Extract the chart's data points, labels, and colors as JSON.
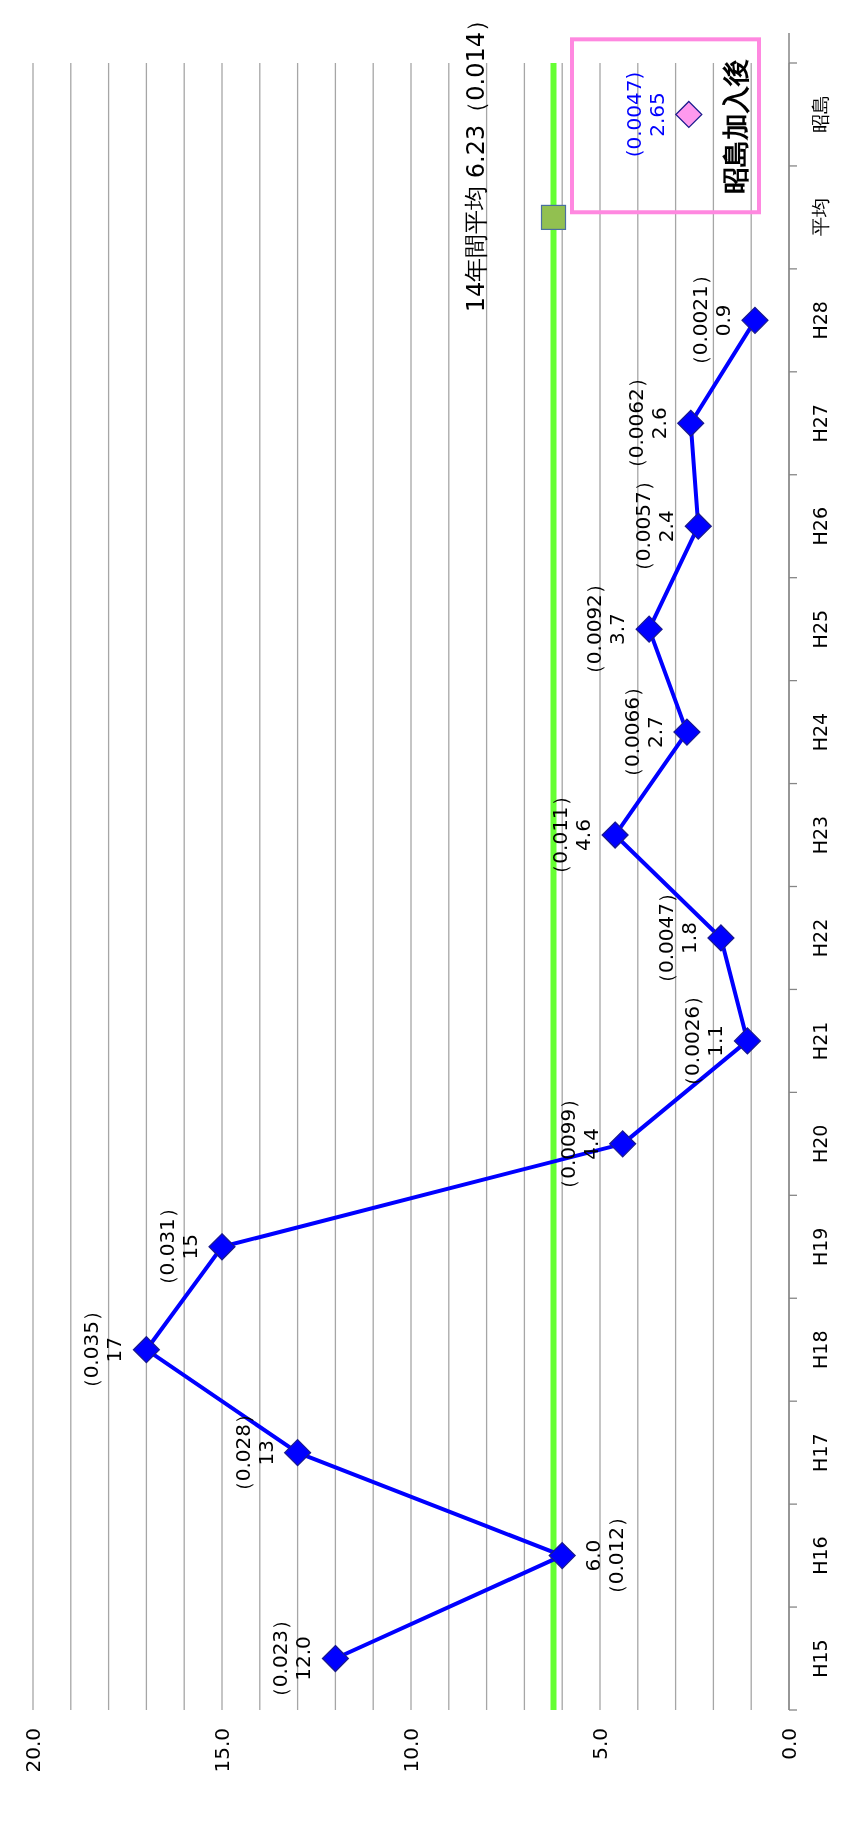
{
  "chart_data": {
    "type": "line",
    "orientation": "horizontal",
    "categories": [
      "昭島",
      "平均",
      "H28",
      "H27",
      "H26",
      "H25",
      "H24",
      "H23",
      "H22",
      "H21",
      "H20",
      "H19",
      "H18",
      "H17",
      "H16",
      "H15"
    ],
    "series": [
      {
        "type": "line",
        "color": "#0000ff",
        "marker": "diamond",
        "values": [
          null,
          null,
          0.9,
          2.6,
          2.4,
          3.7,
          2.7,
          4.6,
          1.8,
          1.1,
          4.4,
          15,
          17,
          13,
          6.0,
          12.0
        ],
        "value_labels": [
          null,
          null,
          "（0.0021）\n0.9",
          "（0.0062）\n2.6",
          "（0.0057）\n2.4",
          "（0.0092）\n3.7",
          "（0.0066）\n2.7",
          "（0.011）\n4.6",
          "（0.0047）\n1.8",
          "（0.0026）\n1.1",
          "（0.0099）\n4.4",
          "（0.031）\n15",
          "（0.035）\n17",
          "（0.028）\n13",
          "6.0\n（0.012）",
          "（0.023）\n12.0"
        ]
      },
      {
        "type": "scatter",
        "color": "#92c050",
        "marker": "square",
        "values": [
          null,
          6.23,
          null,
          null,
          null,
          null,
          null,
          null,
          null,
          null,
          null,
          null,
          null,
          null,
          null,
          null
        ]
      },
      {
        "type": "scatter",
        "color": "#ff99ee",
        "marker": "diamond",
        "values": [
          2.65,
          null,
          null,
          null,
          null,
          null,
          null,
          null,
          null,
          null,
          null,
          null,
          null,
          null,
          null,
          null
        ],
        "value_labels": [
          "(0.0047)\n2.65",
          null,
          null,
          null,
          null,
          null,
          null,
          null,
          null,
          null,
          null,
          null,
          null,
          null,
          null,
          null
        ]
      }
    ],
    "ref_lines": [
      {
        "axis": "x",
        "value": 6.23,
        "label": "14年間平均 6.23（0.014）",
        "color": "#66ff33"
      }
    ],
    "annotations": [
      "昭島加入後"
    ],
    "xlim": [
      20,
      0
    ],
    "xticks": [
      {
        "value": 0,
        "label": "0.0"
      },
      {
        "value": 1,
        "label": null
      },
      {
        "value": 2,
        "label": null
      },
      {
        "value": 3,
        "label": null
      },
      {
        "value": 4,
        "label": null
      },
      {
        "value": 5,
        "label": "5.0"
      },
      {
        "value": 6,
        "label": null
      },
      {
        "value": 7,
        "label": null
      },
      {
        "value": 8,
        "label": null
      },
      {
        "value": 9,
        "label": null
      },
      {
        "value": 10,
        "label": "10.0"
      },
      {
        "value": 11,
        "label": null
      },
      {
        "value": 12,
        "label": null
      },
      {
        "value": 13,
        "label": null
      },
      {
        "value": 14,
        "label": null
      },
      {
        "value": 15,
        "label": "15.0"
      },
      {
        "value": 16,
        "label": null
      },
      {
        "value": 17,
        "label": null
      },
      {
        "value": 18,
        "label": null
      },
      {
        "value": 19,
        "label": null
      },
      {
        "value": 20,
        "label": "20.0"
      }
    ],
    "grid": "x",
    "line_style": "solid"
  }
}
